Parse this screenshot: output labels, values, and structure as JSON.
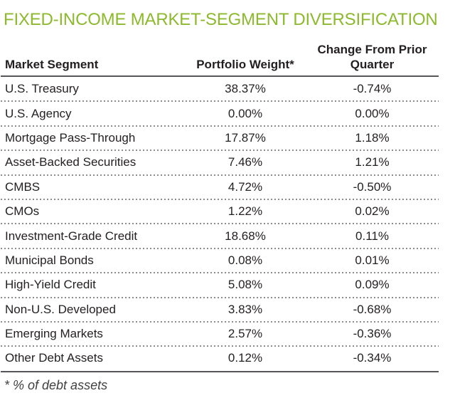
{
  "title": "FIXED-INCOME MARKET-SEGMENT DIVERSIFICATION",
  "colors": {
    "title_green": "#8CB92D",
    "body_text": "#231F20",
    "rule_dark": "#55565A",
    "dot_gray": "#8A8C8F",
    "footnote_gray": "#414142"
  },
  "table": {
    "headers": {
      "segment": "Market Segment",
      "weight": "Portfolio Weight*",
      "change_line1": "Change From Prior",
      "change_line2": "Quarter"
    },
    "rows": [
      {
        "segment": "U.S. Treasury",
        "weight": "38.37%",
        "change": "-0.74%"
      },
      {
        "segment": "U.S. Agency",
        "weight": "0.00%",
        "change": "0.00%"
      },
      {
        "segment": "Mortgage Pass-Through",
        "weight": "17.87%",
        "change": "1.18%"
      },
      {
        "segment": "Asset-Backed Securities",
        "weight": "7.46%",
        "change": "1.21%"
      },
      {
        "segment": "CMBS",
        "weight": "4.72%",
        "change": "-0.50%"
      },
      {
        "segment": "CMOs",
        "weight": "1.22%",
        "change": "0.02%"
      },
      {
        "segment": "Investment-Grade Credit",
        "weight": "18.68%",
        "change": "0.11%"
      },
      {
        "segment": "Municipal Bonds",
        "weight": "0.08%",
        "change": "0.01%"
      },
      {
        "segment": "High-Yield Credit",
        "weight": "5.08%",
        "change": "0.09%"
      },
      {
        "segment": "Non-U.S. Developed",
        "weight": "3.83%",
        "change": "-0.68%"
      },
      {
        "segment": "Emerging Markets",
        "weight": "2.57%",
        "change": "-0.36%"
      },
      {
        "segment": "Other Debt Assets",
        "weight": "0.12%",
        "change": "-0.34%"
      }
    ]
  },
  "footnote": "* % of debt assets",
  "chart_data": {
    "type": "table",
    "title": "FIXED-INCOME MARKET-SEGMENT DIVERSIFICATION",
    "columns": [
      "Market Segment",
      "Portfolio Weight* (%)",
      "Change From Prior Quarter (%)"
    ],
    "rows": [
      [
        "U.S. Treasury",
        38.37,
        -0.74
      ],
      [
        "U.S. Agency",
        0.0,
        0.0
      ],
      [
        "Mortgage Pass-Through",
        17.87,
        1.18
      ],
      [
        "Asset-Backed Securities",
        7.46,
        1.21
      ],
      [
        "CMBS",
        4.72,
        -0.5
      ],
      [
        "CMOs",
        1.22,
        0.02
      ],
      [
        "Investment-Grade Credit",
        18.68,
        0.11
      ],
      [
        "Municipal Bonds",
        0.08,
        0.01
      ],
      [
        "High-Yield Credit",
        5.08,
        0.09
      ],
      [
        "Non-U.S. Developed",
        3.83,
        -0.68
      ],
      [
        "Emerging Markets",
        2.57,
        -0.36
      ],
      [
        "Other Debt Assets",
        0.12,
        -0.34
      ]
    ],
    "footnote": "* % of debt assets"
  }
}
